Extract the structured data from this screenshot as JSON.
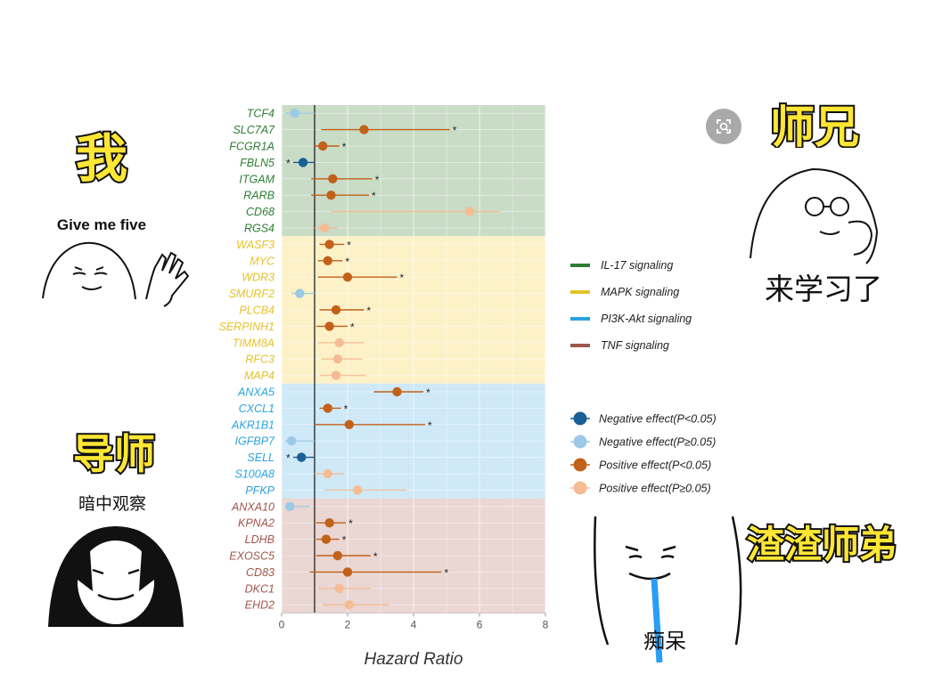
{
  "chart_data": {
    "type": "forest",
    "xlabel": "Hazard Ratio",
    "xlim": [
      0,
      8
    ],
    "xticks": [
      0,
      2,
      4,
      6,
      8
    ],
    "reference_line": 1,
    "grid": true,
    "legend_position": "right",
    "groups": [
      {
        "name": "IL-17 signaling",
        "color": "#2e7d32",
        "band": "#c9dcc6",
        "genes": [
          "TCF4",
          "SLC7A7",
          "FCGR1A",
          "FBLN5",
          "ITGAM",
          "RARB",
          "CD68",
          "RGS4"
        ]
      },
      {
        "name": "MAPK signaling",
        "color": "#e6c229",
        "band": "#fdf1c8",
        "genes": [
          "WASF3",
          "MYC",
          "WDR3",
          "SMURF2",
          "PLCB4",
          "SERPINH1",
          "TIMM8A",
          "RFC3",
          "MAP4"
        ]
      },
      {
        "name": "PI3K-Akt signaling",
        "color": "#29a3e0",
        "band": "#cfe9f8",
        "genes": [
          "ANXA5",
          "CXCL1",
          "AKR1B1",
          "IGFBP7",
          "SELL",
          "S100A8",
          "PFKP"
        ]
      },
      {
        "name": "TNF signaling",
        "color": "#a0564e",
        "band": "#ead6d3",
        "genes": [
          "ANXA10",
          "KPNA2",
          "LDHB",
          "EXOSC5",
          "CD83",
          "DKC1",
          "EHD2"
        ]
      }
    ],
    "effects": [
      {
        "name": "Negative effect(P<0.05)",
        "color": "#1a5f95"
      },
      {
        "name": "Negative effect(P≥0.05)",
        "color": "#9cc9e6"
      },
      {
        "name": "Positive effect(P<0.05)",
        "color": "#c2611a"
      },
      {
        "name": "Positive effect(P≥0.05)",
        "color": "#f5bc93"
      }
    ],
    "rows": [
      {
        "gene": "TCF4",
        "hr": 0.4,
        "lo": 0.1,
        "hi": 1.0,
        "effect": 1,
        "sig": ""
      },
      {
        "gene": "SLC7A7",
        "hr": 2.5,
        "lo": 1.2,
        "hi": 5.1,
        "effect": 2,
        "sig": "*"
      },
      {
        "gene": "FCGR1A",
        "hr": 1.25,
        "lo": 1.0,
        "hi": 1.75,
        "effect": 2,
        "sig": "*"
      },
      {
        "gene": "FBLN5",
        "hr": 0.65,
        "lo": 0.35,
        "hi": 1.0,
        "effect": 0,
        "sig": "*"
      },
      {
        "gene": "ITGAM",
        "hr": 1.55,
        "lo": 0.9,
        "hi": 2.75,
        "effect": 2,
        "sig": "*"
      },
      {
        "gene": "RARB",
        "hr": 1.5,
        "lo": 0.9,
        "hi": 2.65,
        "effect": 2,
        "sig": "*"
      },
      {
        "gene": "CD68",
        "hr": 5.7,
        "lo": 1.5,
        "hi": 6.6,
        "effect": 3,
        "sig": ""
      },
      {
        "gene": "RGS4",
        "hr": 1.3,
        "lo": 1.0,
        "hi": 1.7,
        "effect": 3,
        "sig": ""
      },
      {
        "gene": "WASF3",
        "hr": 1.45,
        "lo": 1.15,
        "hi": 1.9,
        "effect": 2,
        "sig": "*"
      },
      {
        "gene": "MYC",
        "hr": 1.4,
        "lo": 1.1,
        "hi": 1.85,
        "effect": 2,
        "sig": "*"
      },
      {
        "gene": "WDR3",
        "hr": 2.0,
        "lo": 1.1,
        "hi": 3.5,
        "effect": 2,
        "sig": "*"
      },
      {
        "gene": "SMURF2",
        "hr": 0.55,
        "lo": 0.3,
        "hi": 1.0,
        "effect": 1,
        "sig": ""
      },
      {
        "gene": "PLCB4",
        "hr": 1.65,
        "lo": 1.15,
        "hi": 2.5,
        "effect": 2,
        "sig": "*"
      },
      {
        "gene": "SERPINH1",
        "hr": 1.45,
        "lo": 1.05,
        "hi": 2.0,
        "effect": 2,
        "sig": "*"
      },
      {
        "gene": "TIMM8A",
        "hr": 1.75,
        "lo": 1.1,
        "hi": 2.5,
        "effect": 3,
        "sig": ""
      },
      {
        "gene": "RFC3",
        "hr": 1.7,
        "lo": 1.2,
        "hi": 2.45,
        "effect": 3,
        "sig": ""
      },
      {
        "gene": "MAP4",
        "hr": 1.65,
        "lo": 1.15,
        "hi": 2.55,
        "effect": 3,
        "sig": ""
      },
      {
        "gene": "ANXA5",
        "hr": 3.5,
        "lo": 2.8,
        "hi": 4.3,
        "effect": 2,
        "sig": "*"
      },
      {
        "gene": "CXCL1",
        "hr": 1.4,
        "lo": 1.15,
        "hi": 1.8,
        "effect": 2,
        "sig": "*"
      },
      {
        "gene": "AKR1B1",
        "hr": 2.05,
        "lo": 1.0,
        "hi": 4.35,
        "effect": 2,
        "sig": "*"
      },
      {
        "gene": "IGFBP7",
        "hr": 0.3,
        "lo": 0.1,
        "hi": 1.0,
        "effect": 1,
        "sig": ""
      },
      {
        "gene": "SELL",
        "hr": 0.6,
        "lo": 0.35,
        "hi": 1.0,
        "effect": 0,
        "sig": "*"
      },
      {
        "gene": "S100A8",
        "hr": 1.4,
        "lo": 1.0,
        "hi": 1.9,
        "effect": 3,
        "sig": ""
      },
      {
        "gene": "PFKP",
        "hr": 2.3,
        "lo": 1.3,
        "hi": 3.8,
        "effect": 3,
        "sig": ""
      },
      {
        "gene": "ANXA10",
        "hr": 0.25,
        "lo": 0.1,
        "hi": 0.85,
        "effect": 1,
        "sig": ""
      },
      {
        "gene": "KPNA2",
        "hr": 1.45,
        "lo": 1.05,
        "hi": 1.95,
        "effect": 2,
        "sig": "*"
      },
      {
        "gene": "LDHB",
        "hr": 1.35,
        "lo": 1.05,
        "hi": 1.75,
        "effect": 2,
        "sig": "*"
      },
      {
        "gene": "EXOSC5",
        "hr": 1.7,
        "lo": 1.05,
        "hi": 2.7,
        "effect": 2,
        "sig": "*"
      },
      {
        "gene": "CD83",
        "hr": 2.0,
        "lo": 0.85,
        "hi": 4.85,
        "effect": 2,
        "sig": "*"
      },
      {
        "gene": "DKC1",
        "hr": 1.75,
        "lo": 1.1,
        "hi": 2.7,
        "effect": 3,
        "sig": ""
      },
      {
        "gene": "EHD2",
        "hr": 2.05,
        "lo": 1.25,
        "hi": 3.25,
        "effect": 3,
        "sig": ""
      }
    ]
  },
  "memes": {
    "me": {
      "title": "我",
      "caption": "Give me five"
    },
    "senior": {
      "title": "师兄",
      "caption": "来学习了"
    },
    "advisor": {
      "title": "导师",
      "caption": "暗中观察"
    },
    "junior": {
      "title": "渣渣师弟",
      "caption": "痴呆"
    }
  },
  "colors": {
    "meme_yellow": "#ffe633",
    "drool_blue": "#2a9df4"
  },
  "icons": {
    "zoom": "visual-search-icon"
  }
}
